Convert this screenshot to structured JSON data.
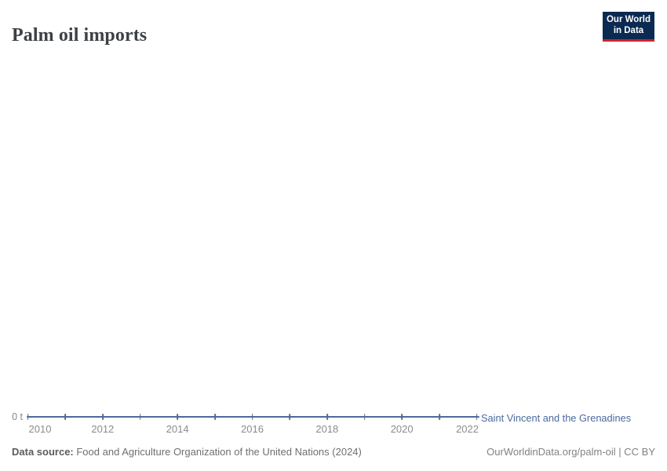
{
  "header": {
    "title": "Palm oil imports",
    "logo": {
      "line1": "Our World",
      "line2": "in Data"
    }
  },
  "chart_data": {
    "type": "line",
    "title": "Palm oil imports",
    "x": [
      2010,
      2011,
      2012,
      2013,
      2014,
      2015,
      2016,
      2017,
      2018,
      2019,
      2020,
      2021,
      2022
    ],
    "series": [
      {
        "name": "Saint Vincent and the Grenadines",
        "values": [
          0,
          0,
          0,
          0,
          0,
          0,
          0,
          0,
          0,
          0,
          0,
          0,
          0
        ]
      }
    ],
    "unit": "t",
    "ylabel": "",
    "xlabel": "",
    "ylim": [
      0,
      0
    ],
    "yticks": [
      0
    ],
    "y_tick_labels": [
      "0 t"
    ],
    "x_tick_labels": [
      "2010",
      "2012",
      "2014",
      "2016",
      "2018",
      "2020",
      "2022"
    ],
    "grid": false,
    "legend_position": "end-of-line",
    "markers": true
  },
  "axis": {
    "y_zero_label": "0 t"
  },
  "footer": {
    "source_label": "Data source:",
    "source_text": " Food and Agriculture Organization of the United Nations (2024)",
    "attribution": "OurWorldinData.org/palm-oil | CC BY"
  },
  "colors": {
    "line": "#4c6a9c",
    "entity_label": "#4c6a9c",
    "logo_background": "#0b2a51",
    "logo_accent_red": "#cd2430",
    "title_text": "#3d4045",
    "axis_text": "#8b8b8b"
  }
}
